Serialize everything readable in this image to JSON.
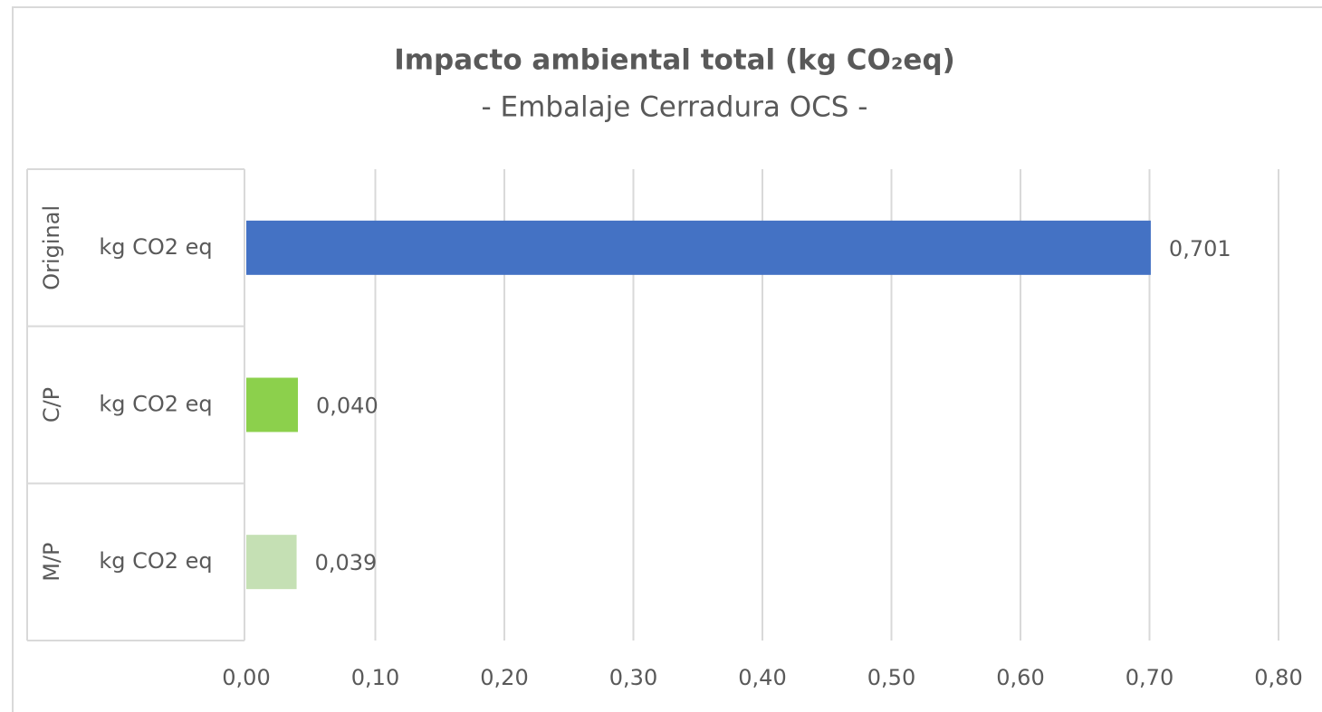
{
  "chart_data": {
    "type": "bar",
    "orientation": "horizontal",
    "title": "Impacto ambiental total (kg CO₂eq)",
    "subtitle": "- Embalaje Cerradura OCS -",
    "groups": [
      "Original",
      "C/P",
      "M/P"
    ],
    "categories": [
      "kg CO2 eq",
      "kg CO2 eq",
      "kg CO2 eq"
    ],
    "values": [
      0.701,
      0.04,
      0.039
    ],
    "value_labels": [
      "0,701",
      "0,040",
      "0,039"
    ],
    "colors": [
      "#4472c4",
      "#8cd04c",
      "#c5e0b4"
    ],
    "xlim": [
      0,
      0.8
    ],
    "xticks": [
      {
        "value": 0,
        "label": "0,00"
      },
      {
        "value": 0.1,
        "label": "0,10"
      },
      {
        "value": 0.2,
        "label": "0,20"
      },
      {
        "value": 0.3,
        "label": "0,30"
      },
      {
        "value": 0.4,
        "label": "0,40"
      },
      {
        "value": 0.5,
        "label": "0,50"
      },
      {
        "value": 0.6,
        "label": "0,60"
      },
      {
        "value": 0.7,
        "label": "0,70"
      },
      {
        "value": 0.8,
        "label": "0,80"
      }
    ],
    "grid": true
  }
}
